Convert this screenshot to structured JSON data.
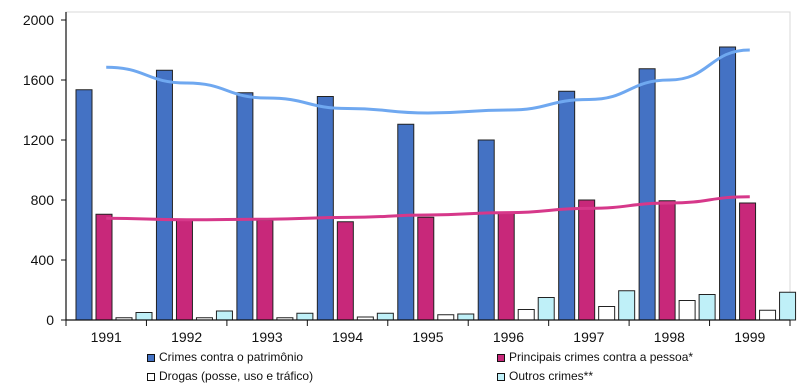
{
  "chart_data": {
    "type": "bar",
    "categories": [
      "1991",
      "1992",
      "1993",
      "1994",
      "1995",
      "1996",
      "1997",
      "1998",
      "1999"
    ],
    "ylim": [
      0,
      2000
    ],
    "yticks": [
      "0",
      "400",
      "800",
      "1200",
      "1600",
      "2000"
    ],
    "ytick_values": [
      0,
      400,
      800,
      1200,
      1600,
      2000
    ],
    "grid": false,
    "legend_placement": "bottom",
    "series": [
      {
        "name": "Crimes contra o patrimônio",
        "color": "#4472c4",
        "values": [
          1535,
          1665,
          1515,
          1490,
          1305,
          1200,
          1525,
          1675,
          1820
        ]
      },
      {
        "name": "Principais crimes contra a pessoa*",
        "color": "#c8287a",
        "values": [
          705,
          665,
          665,
          655,
          685,
          720,
          800,
          795,
          780
        ]
      },
      {
        "name": "Drogas (posse, uso e tráfico)",
        "color": "#ffffff",
        "values": [
          15,
          15,
          15,
          20,
          35,
          70,
          90,
          130,
          65
        ]
      },
      {
        "name": "Outros crimes**",
        "color": "#bff0f8",
        "values": [
          50,
          60,
          45,
          45,
          40,
          150,
          195,
          170,
          185
        ]
      }
    ],
    "trendlines": [
      {
        "series": "Crimes contra o patrimônio",
        "color": "#6fa8f0",
        "values": [
          1685,
          1580,
          1480,
          1410,
          1380,
          1400,
          1470,
          1600,
          1800
        ]
      },
      {
        "series": "Principais crimes contra a pessoa*",
        "color": "#d6388a",
        "values": [
          678,
          668,
          672,
          684,
          700,
          716,
          744,
          780,
          822
        ]
      }
    ]
  }
}
